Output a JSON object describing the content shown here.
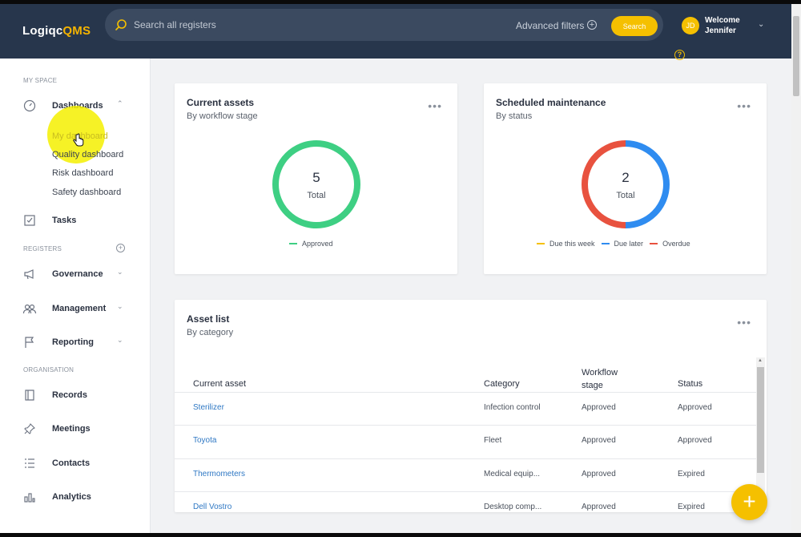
{
  "header": {
    "logo_main": "Logiqc",
    "logo_accent": "QMS",
    "search_placeholder": "Search all registers",
    "advanced_filters": "Advanced filters",
    "search_button": "Search",
    "avatar_initials": "JD",
    "welcome": "Welcome",
    "user_name": "Jennifer"
  },
  "sidebar": {
    "my_space": "MY SPACE",
    "dashboards": "Dashboards",
    "sub_items": [
      "My dashboard",
      "Quality dashboard",
      "Risk dashboard",
      "Safety dashboard"
    ],
    "tasks": "Tasks",
    "registers": "REGISTERS",
    "governance": "Governance",
    "management": "Management",
    "reporting": "Reporting",
    "organisation": "ORGANISATION",
    "records": "Records",
    "meetings": "Meetings",
    "contacts": "Contacts",
    "analytics": "Analytics"
  },
  "current_assets": {
    "title": "Current assets",
    "subtitle": "By workflow stage",
    "total_value": "5",
    "total_label": "Total",
    "legend": [
      {
        "label": "Approved",
        "color": "#3ecf83"
      }
    ]
  },
  "scheduled_maintenance": {
    "title": "Scheduled maintenance",
    "subtitle": "By status",
    "total_value": "2",
    "total_label": "Total",
    "legend": [
      {
        "label": "Due this week",
        "color": "#f5c000"
      },
      {
        "label": "Due later",
        "color": "#2f8cf0"
      },
      {
        "label": "Overdue",
        "color": "#e8523f"
      }
    ]
  },
  "chart_data": [
    {
      "type": "pie",
      "title": "Current assets",
      "categories": [
        "Approved"
      ],
      "values": [
        5
      ],
      "colors": [
        "#3ecf83"
      ]
    },
    {
      "type": "pie",
      "title": "Scheduled maintenance",
      "categories": [
        "Due this week",
        "Due later",
        "Overdue"
      ],
      "values": [
        0,
        1,
        1
      ],
      "colors": [
        "#f5c000",
        "#2f8cf0",
        "#e8523f"
      ]
    }
  ],
  "asset_list": {
    "title": "Asset list",
    "subtitle": "By category",
    "columns": [
      "Current asset",
      "Category",
      "Workflow stage",
      "Status"
    ],
    "workflow_line1": "Workflow",
    "workflow_line2": "stage",
    "rows": [
      {
        "asset": "Sterilizer",
        "category": "Infection control",
        "stage": "Approved",
        "status": "Approved"
      },
      {
        "asset": "Toyota",
        "category": "Fleet",
        "stage": "Approved",
        "status": "Approved"
      },
      {
        "asset": "Thermometers",
        "category": "Medical equip...",
        "stage": "Approved",
        "status": "Expired"
      },
      {
        "asset": "Dell Vostro",
        "category": "Desktop comp...",
        "stage": "Approved",
        "status": "Expired"
      }
    ]
  },
  "fab_label": "+"
}
